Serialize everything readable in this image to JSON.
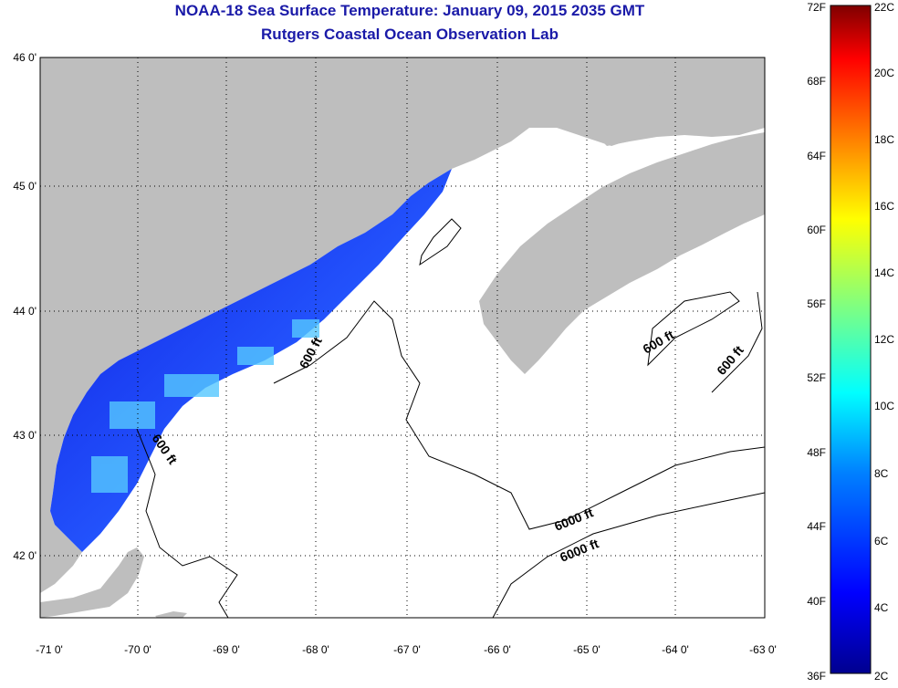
{
  "title": {
    "line1": "NOAA-18 Sea Surface Temperature:  January 09, 2015 2035 GMT",
    "line2": "Rutgers Coastal Ocean Observation Lab"
  },
  "map": {
    "lat_ticks": [
      "46 0'",
      "45 0'",
      "44 0'",
      "43 0'",
      "42 0'"
    ],
    "lon_ticks": [
      "-71 0'",
      "-70 0'",
      "-69 0'",
      "-68 0'",
      "-67 0'",
      "-66 0'",
      "-65 0'",
      "-64 0'",
      "-63 0'"
    ],
    "contour_labels": [
      "600 ft",
      "600 ft",
      "600 ft",
      "600 ft",
      "6000 ft"
    ],
    "land_color": "#bebebe",
    "water_color": "#ffffff"
  },
  "colorbar": {
    "f_ticks": [
      "72F",
      "68F",
      "64F",
      "60F",
      "56F",
      "52F",
      "48F",
      "44F",
      "40F",
      "36F"
    ],
    "c_ticks": [
      "22C",
      "20C",
      "18C",
      "16C",
      "14C",
      "12C",
      "10C",
      "8C",
      "6C",
      "4C",
      "2C"
    ],
    "colors": [
      "#7f0000",
      "#ff0000",
      "#ff8000",
      "#ffff00",
      "#80ff80",
      "#00ffff",
      "#0080ff",
      "#0000ff",
      "#00008f"
    ]
  }
}
